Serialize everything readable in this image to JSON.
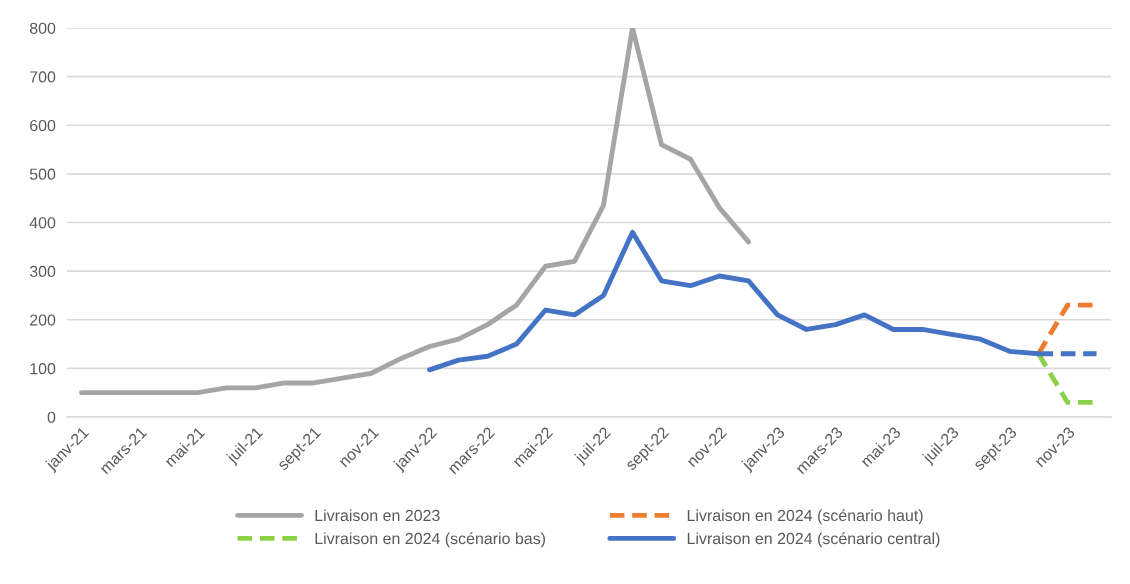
{
  "chart_data": {
    "type": "line",
    "categories": [
      "janv-21",
      null,
      "mars-21",
      null,
      "mai-21",
      null,
      "juil-21",
      null,
      "sept-21",
      null,
      "nov-21",
      null,
      "janv-22",
      null,
      "mars-22",
      null,
      "mai-22",
      null,
      "juil-22",
      null,
      "sept-22",
      null,
      "nov-22",
      null,
      "janv-23",
      null,
      "mars-23",
      null,
      "mai-23",
      null,
      "juil-23",
      null,
      "sept-23",
      null,
      "nov-23",
      null
    ],
    "series": [
      {
        "name": "Livraison en 2023",
        "color": "#a5a5a5",
        "line_style": "solid",
        "values": [
          50,
          50,
          50,
          50,
          50,
          60,
          60,
          70,
          70,
          80,
          90,
          120,
          145,
          160,
          190,
          230,
          310,
          320,
          435,
          800,
          560,
          530,
          430,
          360,
          null,
          null,
          null,
          null,
          null,
          null,
          null,
          null,
          null,
          null,
          null,
          null
        ]
      },
      {
        "name": "Livraison en 2024 (scénario bas)",
        "color": "#8cd248",
        "line_style": "dashed",
        "values": [
          null,
          null,
          null,
          null,
          null,
          null,
          null,
          null,
          null,
          null,
          null,
          null,
          null,
          null,
          null,
          null,
          null,
          null,
          null,
          null,
          null,
          null,
          null,
          null,
          null,
          null,
          null,
          null,
          null,
          null,
          null,
          null,
          null,
          130,
          30,
          30
        ]
      },
      {
        "name": "Livraison en 2024 (scénario haut)",
        "color": "#ed7d31",
        "line_style": "dashed",
        "values": [
          null,
          null,
          null,
          null,
          null,
          null,
          null,
          null,
          null,
          null,
          null,
          null,
          null,
          null,
          null,
          null,
          null,
          null,
          null,
          null,
          null,
          null,
          null,
          null,
          null,
          null,
          null,
          null,
          null,
          null,
          null,
          null,
          null,
          130,
          230,
          230
        ]
      },
      {
        "name": "Livraison en 2024 (scénario central)",
        "color": "#4472c4",
        "line_style": "solid",
        "values": [
          null,
          null,
          null,
          null,
          null,
          null,
          null,
          null,
          null,
          null,
          null,
          null,
          97,
          117,
          125,
          150,
          220,
          210,
          250,
          380,
          280,
          270,
          290,
          280,
          210,
          180,
          190,
          210,
          180,
          180,
          170,
          160,
          135,
          130,
          null,
          null
        ]
      },
      {
        "color": "#4472c4",
        "line_style": "dashed",
        "values": [
          null,
          null,
          null,
          null,
          null,
          null,
          null,
          null,
          null,
          null,
          null,
          null,
          null,
          null,
          null,
          null,
          null,
          null,
          null,
          null,
          null,
          null,
          null,
          null,
          null,
          null,
          null,
          null,
          null,
          null,
          null,
          null,
          null,
          130,
          130,
          130
        ]
      }
    ],
    "ylim": [
      0,
      800
    ],
    "yticks": [
      0,
      100,
      200,
      300,
      400,
      500,
      600,
      700,
      800
    ],
    "grid": "y",
    "legend": "bottom",
    "marker": "none"
  }
}
